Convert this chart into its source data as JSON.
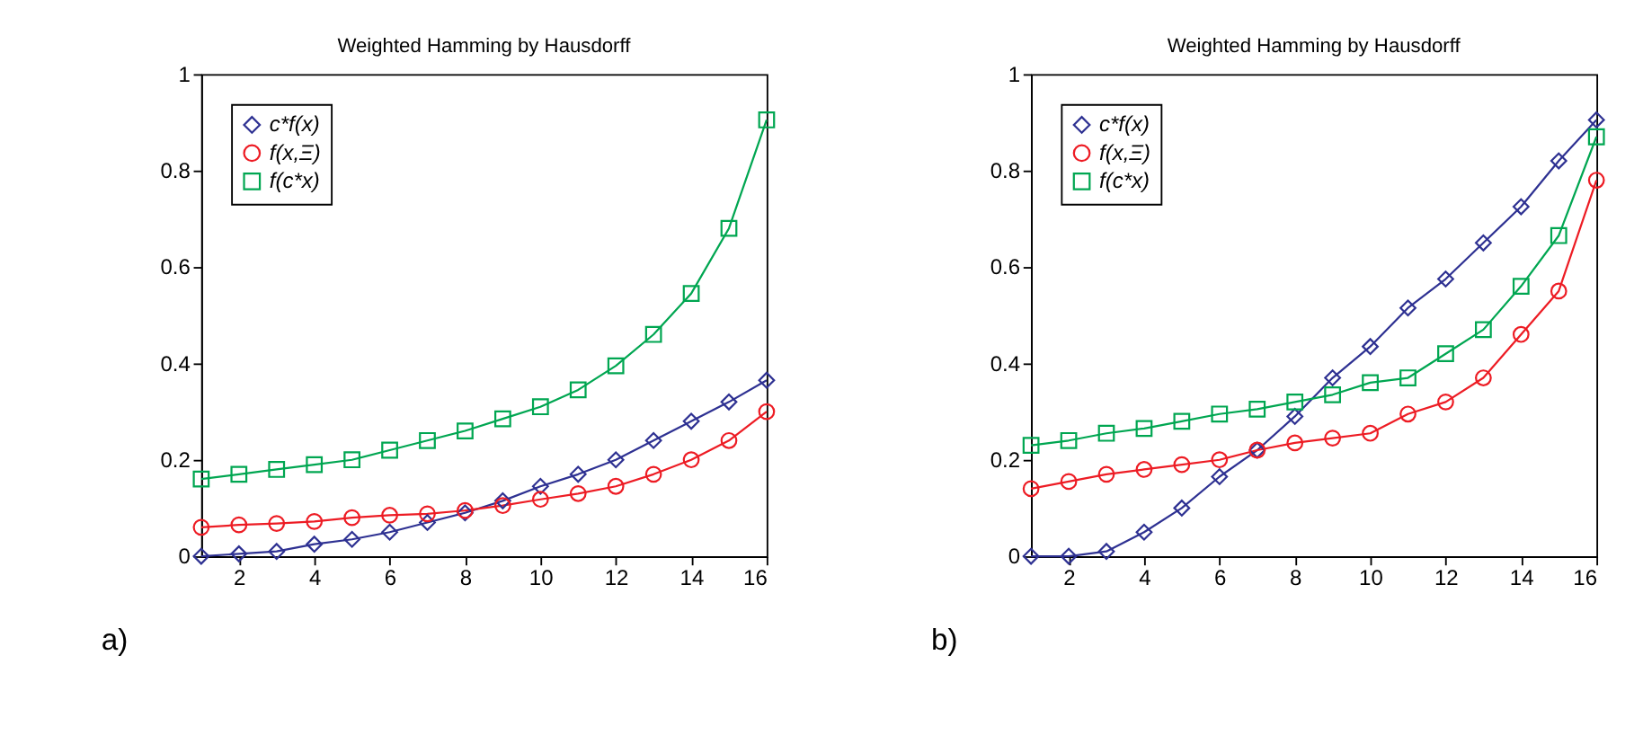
{
  "chart_data": [
    {
      "type": "line",
      "title": "Weighted Hamming by Hausdorff",
      "annotations": [
        "a)"
      ],
      "x": [
        1,
        2,
        3,
        4,
        5,
        6,
        7,
        8,
        9,
        10,
        11,
        12,
        13,
        14,
        15,
        16
      ],
      "series": [
        {
          "name": "c*f(x)",
          "color": "#2e3192",
          "marker": "diamond",
          "values": [
            0,
            0.005,
            0.01,
            0.025,
            0.035,
            0.05,
            0.07,
            0.09,
            0.115,
            0.145,
            0.17,
            0.2,
            0.24,
            0.28,
            0.32,
            0.365
          ]
        },
        {
          "name": "f(x,Ξ)",
          "color": "#ed1c24",
          "marker": "circle",
          "values": [
            0.06,
            0.065,
            0.068,
            0.072,
            0.08,
            0.085,
            0.088,
            0.095,
            0.105,
            0.118,
            0.13,
            0.145,
            0.17,
            0.2,
            0.24,
            0.3
          ]
        },
        {
          "name": "f(c*x)",
          "color": "#00a651",
          "marker": "square",
          "values": [
            0.16,
            0.17,
            0.18,
            0.19,
            0.2,
            0.22,
            0.24,
            0.26,
            0.285,
            0.31,
            0.345,
            0.395,
            0.46,
            0.545,
            0.68,
            0.905
          ]
        }
      ],
      "xlim": [
        1,
        16
      ],
      "xticks": [
        2,
        4,
        6,
        8,
        10,
        12,
        14,
        16
      ],
      "ylim": [
        0,
        1
      ],
      "yticks": [
        0,
        0.2,
        0.4,
        0.6,
        0.8,
        1
      ],
      "legend": "top left",
      "grid": false,
      "line_style": "solid"
    },
    {
      "type": "line",
      "title": "Weighted Hamming by Hausdorff",
      "annotations": [
        "b)"
      ],
      "x": [
        1,
        2,
        3,
        4,
        5,
        6,
        7,
        8,
        9,
        10,
        11,
        12,
        13,
        14,
        15,
        16
      ],
      "series": [
        {
          "name": "c*f(x)",
          "color": "#2e3192",
          "marker": "diamond",
          "values": [
            0,
            0,
            0.01,
            0.05,
            0.1,
            0.165,
            0.22,
            0.29,
            0.37,
            0.435,
            0.515,
            0.575,
            0.65,
            0.725,
            0.82,
            0.905
          ]
        },
        {
          "name": "f(x,Ξ)",
          "color": "#ed1c24",
          "marker": "circle",
          "values": [
            0.14,
            0.155,
            0.17,
            0.18,
            0.19,
            0.2,
            0.22,
            0.235,
            0.245,
            0.255,
            0.295,
            0.32,
            0.37,
            0.46,
            0.55,
            0.78
          ]
        },
        {
          "name": "f(c*x)",
          "color": "#00a651",
          "marker": "square",
          "values": [
            0.23,
            0.24,
            0.255,
            0.265,
            0.28,
            0.295,
            0.305,
            0.32,
            0.335,
            0.36,
            0.37,
            0.42,
            0.47,
            0.56,
            0.665,
            0.87
          ]
        }
      ],
      "xlim": [
        1,
        16
      ],
      "xticks": [
        2,
        4,
        6,
        8,
        10,
        12,
        14,
        16
      ],
      "ylim": [
        0,
        1
      ],
      "yticks": [
        0,
        0.2,
        0.4,
        0.6,
        0.8,
        1
      ],
      "legend": "top left",
      "grid": false,
      "line_style": "solid"
    }
  ]
}
